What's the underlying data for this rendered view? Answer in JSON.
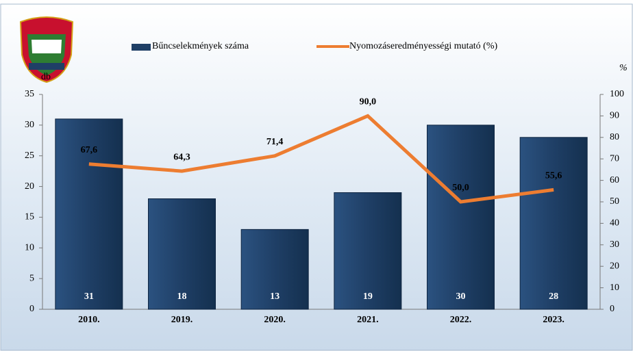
{
  "chart_data": {
    "type": "bar_line",
    "categories": [
      "2010.",
      "2019.",
      "2020.",
      "2021.",
      "2022.",
      "2023."
    ],
    "series": [
      {
        "name": "Bűncselekmények száma",
        "color": "#1f3f66",
        "values": [
          31,
          18,
          13,
          19,
          30,
          28
        ]
      },
      {
        "name": "Nyomozáseredményességi mutató (%)",
        "color": "#ed7d31",
        "axis": "y2",
        "values": [
          67.6,
          64.3,
          71.4,
          90.0,
          50.0,
          55.6
        ],
        "value_labels": [
          "67,6",
          "64,3",
          "71,4",
          "90,0",
          "50,0",
          "55,6"
        ]
      }
    ],
    "ylabel": "db",
    "y2label": "%",
    "ylim": [
      0,
      35
    ],
    "yticks": [
      0,
      5,
      10,
      15,
      20,
      25,
      30,
      35
    ],
    "y2lim": [
      0,
      100
    ],
    "y2ticks": [
      0,
      10,
      20,
      30,
      40,
      50,
      60,
      70,
      80,
      90,
      100
    ]
  }
}
